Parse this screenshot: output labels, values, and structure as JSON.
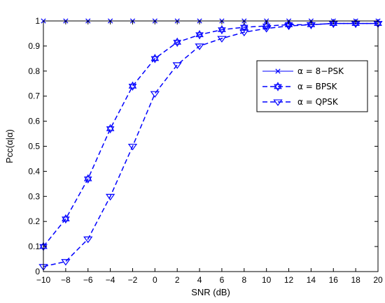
{
  "chart_data": {
    "type": "line",
    "title": "",
    "xlabel": "SNR (dB)",
    "ylabel": "Pcc(α|α)",
    "xlim": [
      -10,
      20
    ],
    "ylim": [
      0,
      1
    ],
    "x_ticks": [
      -10,
      -8,
      -6,
      -4,
      -2,
      0,
      2,
      4,
      6,
      8,
      10,
      12,
      14,
      16,
      18,
      20
    ],
    "y_ticks": [
      0,
      0.1,
      0.2,
      0.3,
      0.4,
      0.5,
      0.6,
      0.7,
      0.8,
      0.9,
      1
    ],
    "grid": false,
    "legend_position": "right",
    "x": [
      -10,
      -8,
      -6,
      -4,
      -2,
      0,
      2,
      4,
      6,
      8,
      10,
      12,
      14,
      16,
      18,
      20
    ],
    "series": [
      {
        "name": "α = 8−PSK",
        "marker": "x",
        "line_style": "solid",
        "color": "#0000ff",
        "values": [
          1,
          1,
          1,
          1,
          1,
          1,
          1,
          1,
          1,
          1,
          1,
          1,
          1,
          1,
          1,
          1
        ]
      },
      {
        "name": "α = BPSK",
        "marker": "hexagram",
        "line_style": "dashed",
        "color": "#0000ff",
        "values": [
          0.1,
          0.21,
          0.37,
          0.57,
          0.74,
          0.85,
          0.915,
          0.945,
          0.965,
          0.975,
          0.98,
          0.985,
          0.985,
          0.99,
          0.99,
          0.99
        ]
      },
      {
        "name": "α = QPSK",
        "marker": "triangle-down",
        "line_style": "dashed",
        "color": "#0000ff",
        "values": [
          0.02,
          0.04,
          0.13,
          0.3,
          0.5,
          0.71,
          0.825,
          0.9,
          0.93,
          0.955,
          0.97,
          0.98,
          0.985,
          0.99,
          0.99,
          0.99
        ]
      }
    ]
  }
}
